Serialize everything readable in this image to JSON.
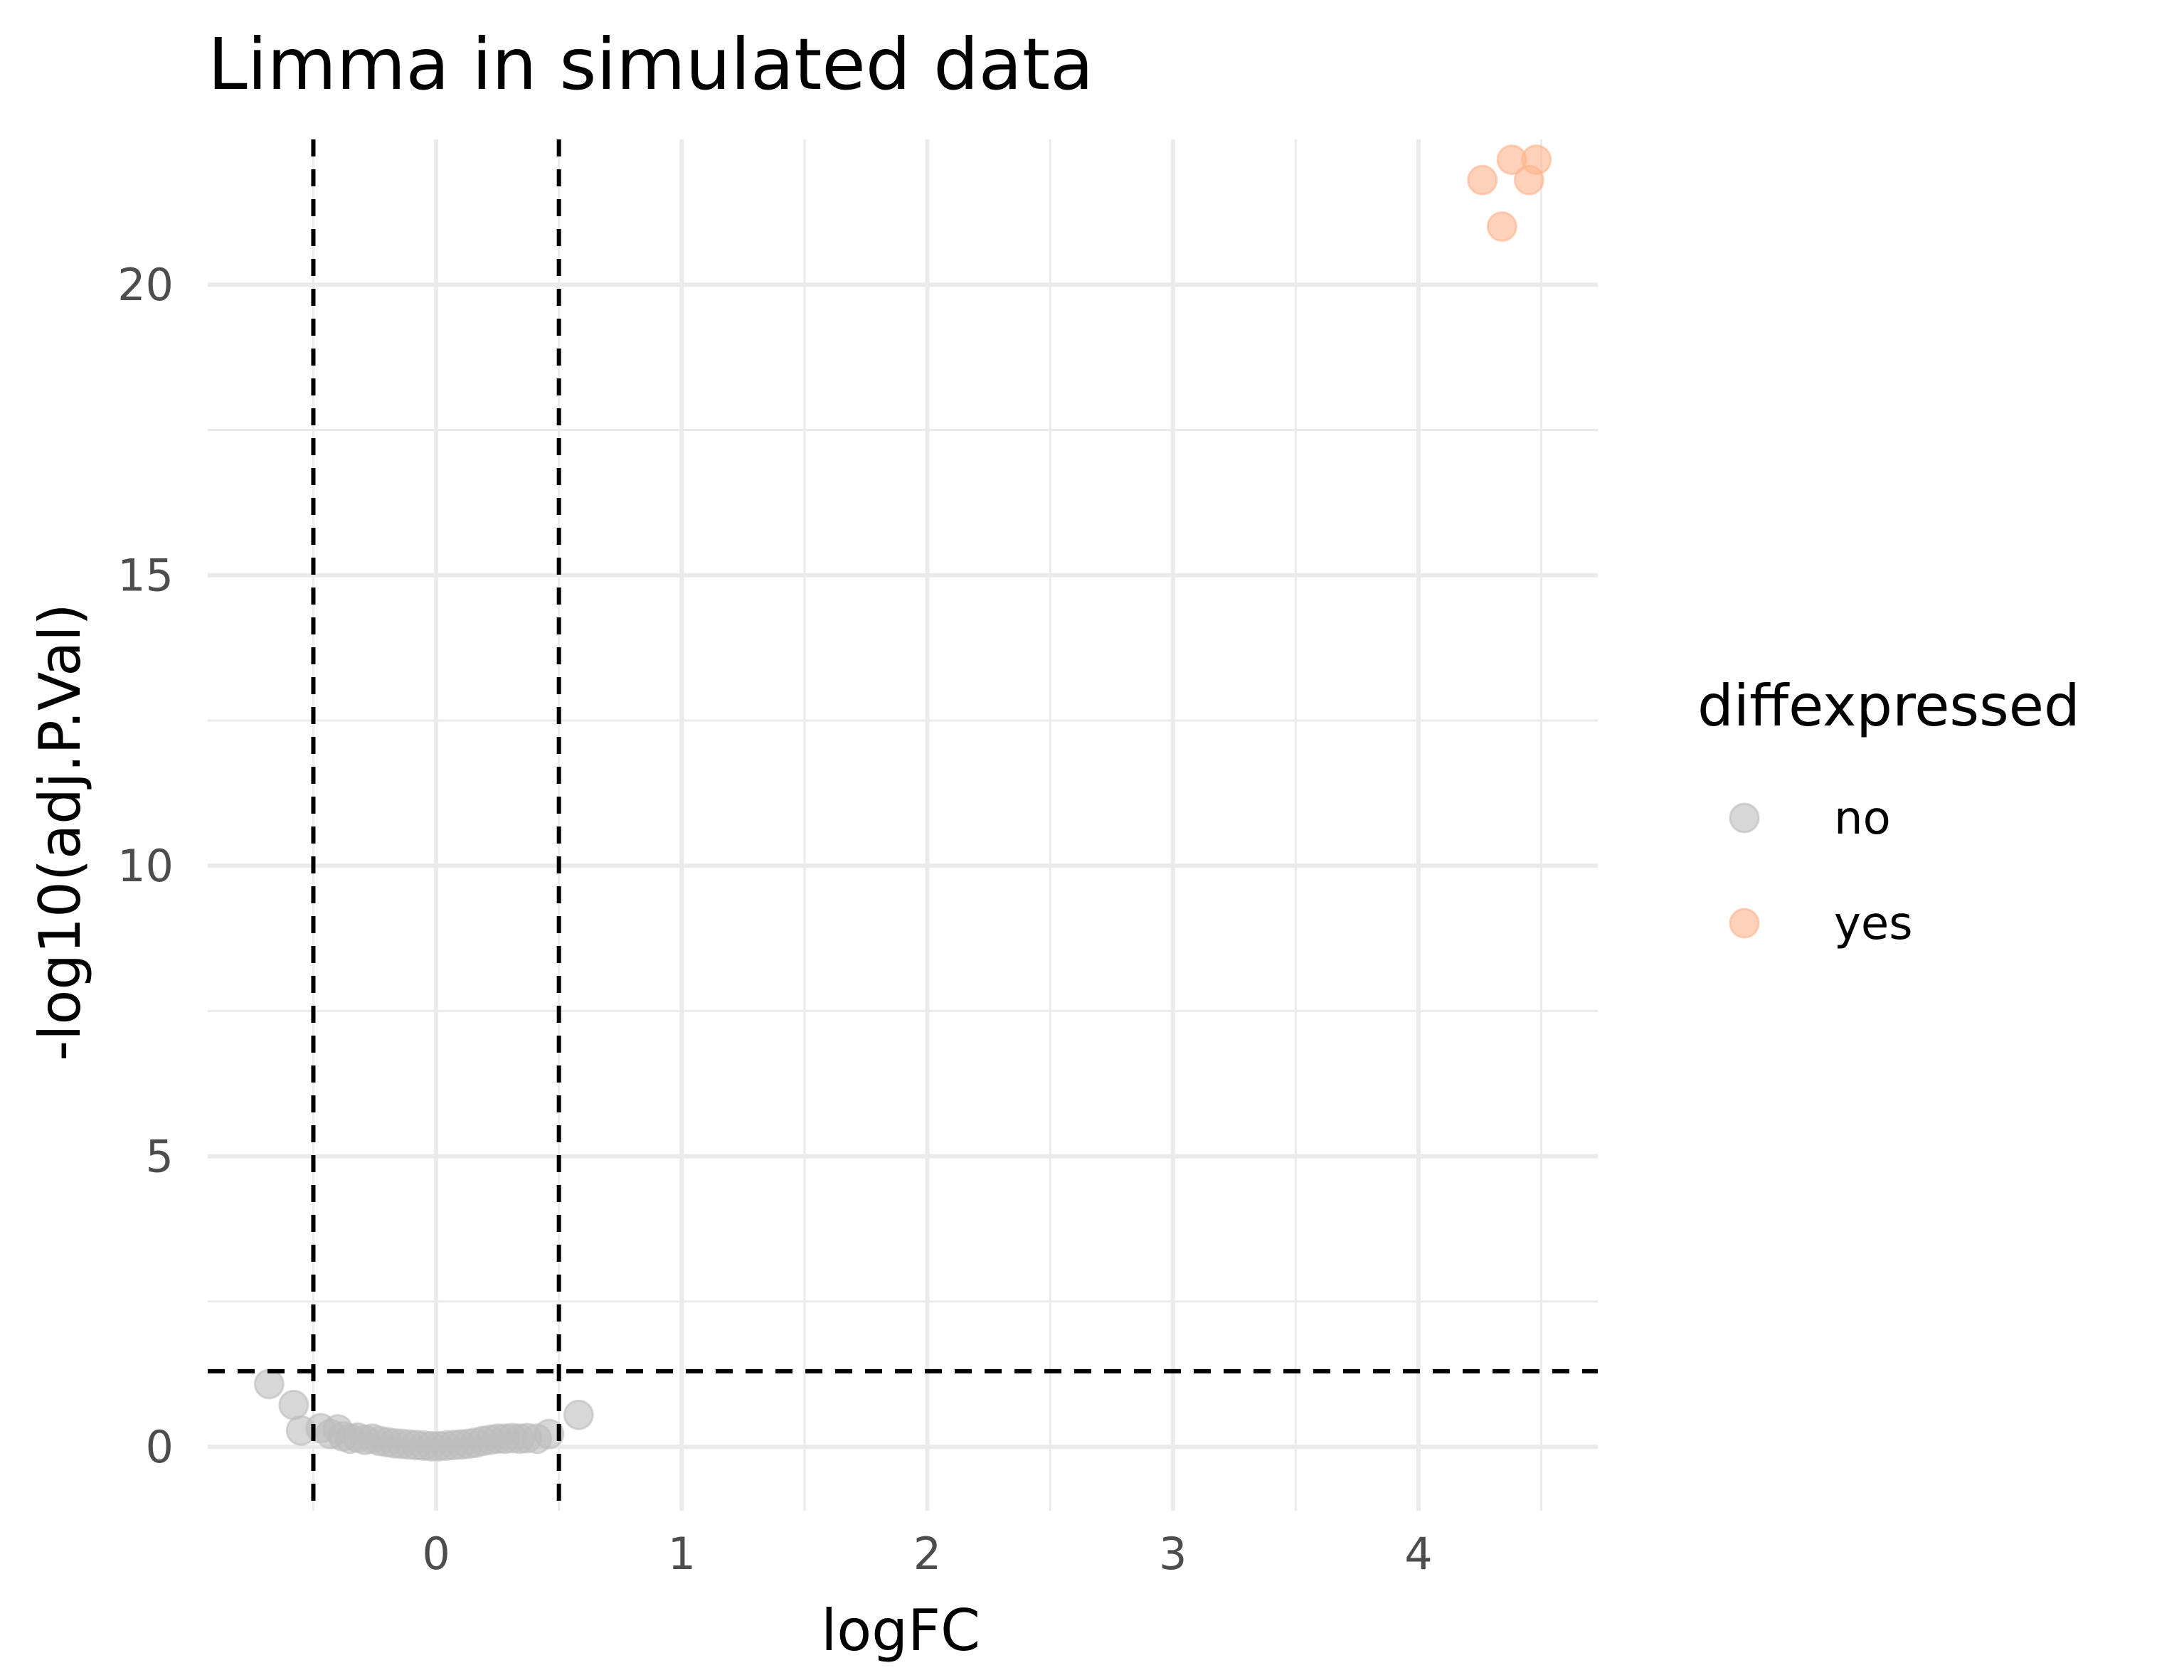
{
  "chart_data": {
    "type": "scatter",
    "title": "Limma in simulated data",
    "xlabel": "logFC",
    "ylabel": "-log10(adj.P.Val)",
    "xlim": [
      -0.93,
      4.73
    ],
    "ylim": [
      -1.1,
      22.5
    ],
    "x_ticks": [
      0,
      1,
      2,
      3,
      4
    ],
    "y_ticks": [
      0,
      5,
      10,
      15,
      20
    ],
    "x_tick_labels": [
      "0",
      "1",
      "2",
      "3",
      "4"
    ],
    "y_tick_labels": [
      "0",
      "5",
      "10",
      "15",
      "20"
    ],
    "grid": true,
    "threshold_lines": {
      "vertical_x": [
        -0.5,
        0.5
      ],
      "horizontal_y": 1.3
    },
    "legend": {
      "title": "diffexpressed",
      "position": "right",
      "entries": [
        {
          "label": "no",
          "color": "#bdbdbd"
        },
        {
          "label": "yes",
          "color": "#fdb48c"
        }
      ]
    },
    "series": [
      {
        "name": "no",
        "color": "#bdbdbd",
        "points": [
          {
            "x": -0.68,
            "y": 1.08
          },
          {
            "x": -0.58,
            "y": 0.72
          },
          {
            "x": -0.55,
            "y": 0.28
          },
          {
            "x": -0.47,
            "y": 0.32
          },
          {
            "x": -0.43,
            "y": 0.22
          },
          {
            "x": -0.4,
            "y": 0.3
          },
          {
            "x": -0.38,
            "y": 0.18
          },
          {
            "x": -0.35,
            "y": 0.14
          },
          {
            "x": -0.32,
            "y": 0.16
          },
          {
            "x": -0.29,
            "y": 0.12
          },
          {
            "x": -0.26,
            "y": 0.14
          },
          {
            "x": -0.23,
            "y": 0.1
          },
          {
            "x": -0.2,
            "y": 0.08
          },
          {
            "x": -0.17,
            "y": 0.06
          },
          {
            "x": -0.14,
            "y": 0.05
          },
          {
            "x": -0.11,
            "y": 0.04
          },
          {
            "x": -0.08,
            "y": 0.03
          },
          {
            "x": -0.05,
            "y": 0.02
          },
          {
            "x": -0.02,
            "y": 0.01
          },
          {
            "x": 0.01,
            "y": 0.01
          },
          {
            "x": 0.04,
            "y": 0.02
          },
          {
            "x": 0.07,
            "y": 0.03
          },
          {
            "x": 0.1,
            "y": 0.04
          },
          {
            "x": 0.13,
            "y": 0.05
          },
          {
            "x": 0.16,
            "y": 0.07
          },
          {
            "x": 0.19,
            "y": 0.1
          },
          {
            "x": 0.22,
            "y": 0.12
          },
          {
            "x": 0.25,
            "y": 0.14
          },
          {
            "x": 0.28,
            "y": 0.14
          },
          {
            "x": 0.31,
            "y": 0.15
          },
          {
            "x": 0.34,
            "y": 0.14
          },
          {
            "x": 0.37,
            "y": 0.15
          },
          {
            "x": 0.41,
            "y": 0.14
          },
          {
            "x": 0.46,
            "y": 0.22
          },
          {
            "x": 0.58,
            "y": 0.55
          }
        ]
      },
      {
        "name": "yes",
        "color": "#fdb48c",
        "points": [
          {
            "x": 4.26,
            "y": 21.8
          },
          {
            "x": 4.34,
            "y": 21.0
          },
          {
            "x": 4.38,
            "y": 22.15
          },
          {
            "x": 4.45,
            "y": 21.8
          },
          {
            "x": 4.48,
            "y": 22.15
          }
        ]
      }
    ]
  }
}
